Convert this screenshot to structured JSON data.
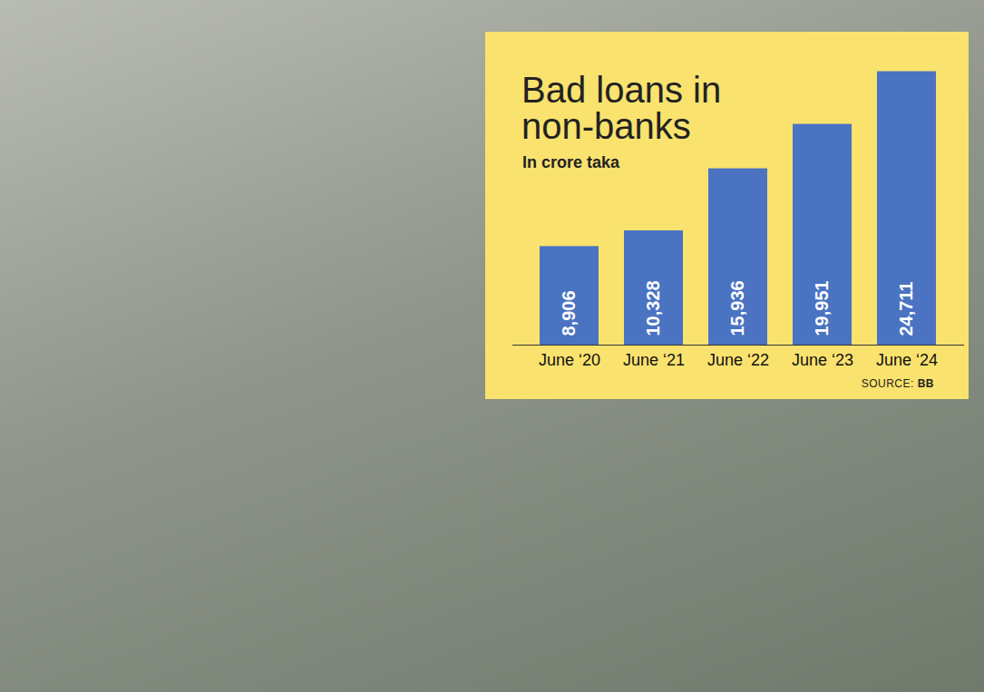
{
  "chart_data": {
    "type": "bar",
    "title": "Bad loans in non-banks",
    "subtitle": "In crore taka",
    "source": "SOURCE: BB",
    "categories": [
      "June ‘20",
      "June ‘21",
      "June ‘22",
      "June ‘23",
      "June ‘24"
    ],
    "values": [
      8906,
      10328,
      15936,
      19951,
      24711
    ],
    "value_labels": [
      "8,906",
      "10,328",
      "15,936",
      "19,951",
      "24,711"
    ],
    "color": "#4a73c2",
    "ylim": [
      0,
      25000
    ],
    "data_labels": true,
    "tick_labels": "x",
    "grid": false
  }
}
